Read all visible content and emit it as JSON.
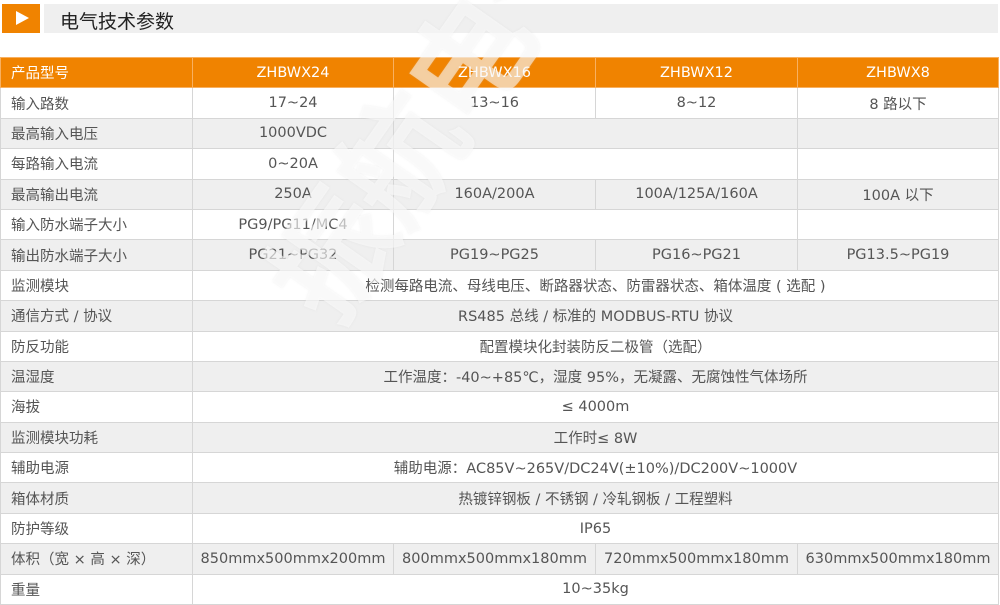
{
  "title": "电气技术参数",
  "watermark": "振航电气科技",
  "colors": {
    "accent": "#f08300",
    "row_alt": "#efefef"
  },
  "header": [
    "产品型号",
    "ZHBWX24",
    "ZHBWX16",
    "ZHBWX12",
    "ZHBWX8"
  ],
  "rows": {
    "r1": [
      "输入路数",
      "17~24",
      "13~16",
      "8~12",
      "8 路以下"
    ],
    "r2": [
      "最高输入电压",
      "1000VDC"
    ],
    "r3": [
      "每路输入电流",
      "0~20A"
    ],
    "r4": [
      "最高输出电流",
      "250A",
      "160A/200A",
      "100A/125A/160A",
      "100A 以下"
    ],
    "r5": [
      "输入防水端子大小",
      "PG9/PG11/MC4"
    ],
    "r6": [
      "输出防水端子大小",
      "PG21~PG32",
      "PG19~PG25",
      "PG16~PG21",
      "PG13.5~PG19"
    ],
    "r7": [
      "监测模块",
      "检测每路电流、母线电压、断路器状态、防雷器状态、箱体温度 ( 选配 )"
    ],
    "r8": [
      "通信方式 / 协议",
      "RS485 总线 / 标准的 MODBUS-RTU 协议"
    ],
    "r9": [
      "防反功能",
      "配置模块化封装防反二极管（选配）"
    ],
    "r10": [
      "温湿度",
      "工作温度：-40~+85℃，湿度 95%，无凝露、无腐蚀性气体场所"
    ],
    "r11": [
      "海拔",
      "≤ 4000m"
    ],
    "r12": [
      "监测模块功耗",
      "工作时≤ 8W"
    ],
    "r13": [
      "辅助电源",
      "辅助电源：AC85V~265V/DC24V(±10%)/DC200V~1000V"
    ],
    "r14": [
      "箱体材质",
      "热镀锌钢板 / 不锈钢 / 冷轧钢板 / 工程塑料"
    ],
    "r15": [
      "防护等级",
      "IP65"
    ],
    "r16": [
      "体积（宽 × 高 × 深）",
      "850mmx500mmx200mm",
      "800mmx500mmx180mm",
      "720mmx500mmx180mm",
      "630mmx500mmx180mm"
    ],
    "r17": [
      "重量",
      "10~35kg"
    ]
  }
}
